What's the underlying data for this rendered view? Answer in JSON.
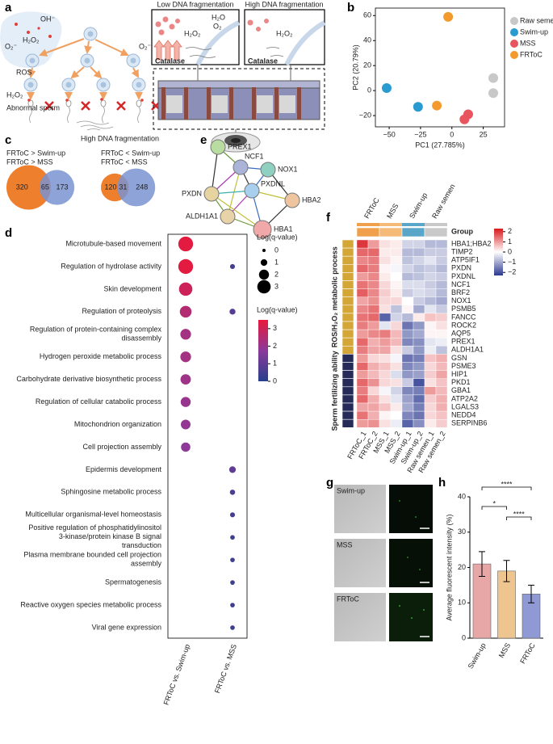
{
  "panel_labels": [
    "a",
    "b",
    "c",
    "d",
    "e",
    "f",
    "g",
    "h"
  ],
  "panel_a": {
    "ros_labels": [
      "OH⁻",
      "O₂⁻",
      "H₂O₂",
      "O₂⁻",
      "ROS",
      "H₂O₂"
    ],
    "abnormal": "Abnormal sperm",
    "high_frag": "High DNA fragmentation",
    "low_box": {
      "title": "Low DNA fragmentation",
      "h2o": "H₂O",
      "o2": "O₂",
      "h2o2": "H₂O₂",
      "catalase": "Catalase"
    },
    "high_box": {
      "title": "High DNA fragmentation",
      "h2o2": "H₂O₂",
      "catalase": "Catalase"
    }
  },
  "panel_c": {
    "venns": [
      {
        "left_label": "FRToC > Swim-up",
        "right_label": "FRToC > MSS",
        "left": 320,
        "both": 65,
        "right": 173,
        "left_color": "#ee7f2d",
        "right_color": "#7a93d0"
      },
      {
        "left_label": "FRToC < Swim-up",
        "right_label": "FRToC < MSS",
        "left": 120,
        "both": 31,
        "right": 248,
        "left_color": "#ee7f2d",
        "right_color": "#7a93d0"
      }
    ]
  },
  "panel_e": {
    "nodes": [
      {
        "label": "PREX1",
        "color": "#b9dca0"
      },
      {
        "label": "NCF1",
        "color": "#a9b4d8"
      },
      {
        "label": "NOX1",
        "color": "#8fd0c0"
      },
      {
        "label": "PXDN",
        "color": "#e6d3a0"
      },
      {
        "label": "PXDNL",
        "color": "#a9cfee"
      },
      {
        "label": "HBA2",
        "color": "#efc5a0"
      },
      {
        "label": "ALDH1A1",
        "color": "#e8d2a8"
      },
      {
        "label": "HBA1",
        "color": "#f0a8a8"
      }
    ]
  },
  "panel_g": {
    "rows": [
      "Swim-up",
      "MSS",
      "FRToC"
    ]
  },
  "chart_data": [
    {
      "type": "scatter",
      "xlabel": "PC1 (27.785%)",
      "ylabel": "PC2 (20.79%)",
      "xlim": [
        -61,
        42
      ],
      "ylim": [
        -29,
        66
      ],
      "xticks": [
        {
          "value": -50,
          "label": "−50"
        },
        {
          "value": -25,
          "label": "−25"
        },
        0,
        25
      ],
      "yticks": [
        {
          "value": -20,
          "label": "−20"
        },
        0,
        20,
        40,
        60
      ],
      "legend": "right",
      "series": [
        {
          "name": "Raw semen",
          "color": "#c8c8c8",
          "x": [
            33,
            33
          ],
          "values": [
            10,
            -2
          ]
        },
        {
          "name": "Swim-up",
          "color": "#2a9bd0",
          "x": [
            -52,
            -27
          ],
          "values": [
            2,
            -13
          ]
        },
        {
          "name": "MSS",
          "color": "#e8555f",
          "x": [
            13,
            10
          ],
          "values": [
            -19,
            -23
          ]
        },
        {
          "name": "FRToC",
          "color": "#f29a2e",
          "x": [
            -3,
            -12
          ],
          "values": [
            59,
            -12
          ]
        }
      ]
    },
    {
      "type": "dot",
      "categories": [
        "Microtubule-based movement",
        "Regulation of hydrolase activity",
        "Skin development",
        "Regulation of proteolysis",
        "Regulation of protein-containing complex disassembly",
        "Hydrogen peroxide metabolic process",
        "Carbohydrate derivative biosynthetic process",
        "Regulation of cellular catabolic process",
        "Mitochondrion organization",
        "Cell projection assembly",
        "Epidermis development",
        "Sphingosine metabolic process",
        "Multicellular organismal-level homeostasis",
        "Positive regulation of phosphatidylinositol 3-kinase/protein kinase B signal transduction",
        "Plasma membrane bounded cell projection assembly",
        "Spermatogenesis",
        "Reactive oxygen species metabolic process",
        "Viral gene expression"
      ],
      "category_colors": [
        "#222",
        "#e02020",
        "#222",
        "#e02020",
        "#222",
        "#e02020",
        "#222",
        "#222",
        "#222",
        "#222",
        "#222",
        "#222",
        "#222",
        "#222",
        "#222",
        "#222",
        "#e02020",
        "#222"
      ],
      "series": [
        {
          "name": "FRToC vs. Swim-up",
          "values": [
            3.4,
            3.4,
            3.0,
            2.5,
            2.2,
            2.2,
            2.1,
            2.0,
            1.9,
            1.8,
            null,
            null,
            null,
            null,
            null,
            null,
            null,
            null
          ]
        },
        {
          "name": "FRToC vs. MSS",
          "values": [
            null,
            0.5,
            null,
            0.8,
            null,
            null,
            null,
            null,
            null,
            null,
            1.0,
            0.6,
            0.5,
            0.4,
            0.4,
            0.4,
            0.4,
            0.4
          ]
        }
      ],
      "size_legend": {
        "title": "Log(q-value)",
        "values": [
          0,
          1,
          2,
          3
        ]
      },
      "color_legend": {
        "title": "Log(q-value)",
        "ticks": [
          0,
          1,
          2,
          3
        ]
      },
      "clim": [
        0,
        3.5
      ],
      "colorscale": [
        "#27408b",
        "#8b3a9a",
        "#e8193c"
      ]
    },
    {
      "type": "heatmap",
      "group_label": "Group",
      "column_groups": [
        {
          "name": "FRToC",
          "color": "#f0a04b",
          "columns": [
            "FRToC_1",
            "FRToC_2"
          ]
        },
        {
          "name": "MSS",
          "color": "#f5b978",
          "columns": [
            "MSS_1",
            "MSS_2"
          ]
        },
        {
          "name": "Swim-up",
          "color": "#5aa6c8",
          "columns": [
            "Swim-up_1",
            "Swim-up_2"
          ]
        },
        {
          "name": "Raw semen",
          "color": "#c9c9c9",
          "columns": [
            "Raw semen_1",
            "Raw semen_2"
          ]
        }
      ],
      "row_blocks": [
        {
          "name": "ROS/H₂O₂ metabolic process",
          "color": "#d4a537",
          "rows": [
            "HBA1;HBA2",
            "TIMP2",
            "ATP5IF1",
            "PXDN",
            "PXDNL",
            "NCF1",
            "BRF2",
            "NOX1",
            "PSMB5",
            "FANCC",
            "ROCK2",
            "AQP5",
            "PREX1",
            "ALDH1A1"
          ],
          "values": [
            [
              2.0,
              1.0,
              0.3,
              0.2,
              -0.5,
              -0.5,
              -0.8,
              -0.8
            ],
            [
              1.5,
              1.5,
              0.2,
              0.2,
              -0.8,
              -0.8,
              -0.6,
              -0.6
            ],
            [
              1.2,
              1.3,
              0.3,
              0.1,
              -0.7,
              -0.5,
              -0.3,
              -0.6
            ],
            [
              1.5,
              1.3,
              0.1,
              -0.1,
              -0.5,
              -0.7,
              -0.6,
              -0.8
            ],
            [
              1.0,
              1.2,
              0.2,
              0.0,
              -0.8,
              -0.7,
              -0.5,
              -0.6
            ],
            [
              1.4,
              1.2,
              0.4,
              0.1,
              -0.4,
              -0.4,
              -0.6,
              -0.8
            ],
            [
              1.6,
              1.2,
              0.5,
              0.2,
              -0.6,
              -0.4,
              -0.5,
              -0.8
            ],
            [
              0.9,
              1.1,
              0.4,
              0.4,
              0.0,
              -0.6,
              -0.8,
              -1.0
            ],
            [
              1.2,
              1.4,
              0.3,
              -0.7,
              0.1,
              -1.0,
              -0.3,
              -0.6
            ],
            [
              1.4,
              1.5,
              -1.8,
              -0.5,
              -0.8,
              0.2,
              0.6,
              0.5
            ],
            [
              1.3,
              1.0,
              -0.3,
              0.4,
              -1.6,
              -1.2,
              0.1,
              0.3
            ],
            [
              1.0,
              1.2,
              1.3,
              0.7,
              -1.2,
              -1.0,
              0.1,
              0.1
            ],
            [
              1.5,
              0.8,
              1.0,
              0.7,
              -1.4,
              -1.3,
              -0.3,
              -0.2
            ],
            [
              1.3,
              0.9,
              0.9,
              0.3,
              -0.6,
              -1.2,
              -0.2,
              -0.7
            ]
          ]
        },
        {
          "name": "Sperm fertilizing ability",
          "color": "#252a59",
          "rows": [
            "GSN",
            "PSME3",
            "HIP1",
            "PKD1",
            "GBA1",
            "ATP2A2",
            "LGALS3",
            "NEDD4",
            "SERPINB6"
          ],
          "values": [
            [
              1.0,
              0.4,
              0.3,
              -0.1,
              -1.6,
              -1.5,
              0.6,
              0.8
            ],
            [
              1.5,
              0.8,
              0.6,
              0.3,
              -1.4,
              -1.2,
              0.4,
              0.7
            ],
            [
              1.0,
              0.7,
              0.4,
              -0.4,
              -1.2,
              -1.1,
              0.5,
              0.9
            ],
            [
              1.5,
              1.1,
              0.4,
              0.3,
              -0.6,
              -2.0,
              0.3,
              0.6
            ],
            [
              1.3,
              0.4,
              -0.1,
              -0.5,
              -1.4,
              -1.5,
              1.0,
              0.7
            ],
            [
              1.5,
              0.8,
              0.3,
              -0.3,
              -1.1,
              -1.7,
              0.5,
              0.8
            ],
            [
              0.9,
              0.9,
              0.6,
              0.2,
              -1.0,
              -1.5,
              0.4,
              0.8
            ],
            [
              1.4,
              0.8,
              0.1,
              0.0,
              -1.4,
              -1.6,
              0.4,
              0.6
            ],
            [
              1.0,
              1.1,
              0.3,
              -0.2,
              -1.8,
              -1.3,
              0.2,
              0.5
            ]
          ]
        }
      ],
      "clim": [
        -2.3,
        2.3
      ],
      "colorscale": [
        "#2b3990",
        "#ffffff",
        "#d7191c"
      ],
      "colorbar_ticks": [
        2,
        1,
        0,
        {
          "value": -1,
          "label": "−1"
        },
        {
          "value": -2,
          "label": "−2"
        }
      ]
    },
    {
      "type": "bar",
      "ylabel": "Average fluorescent intensity (%)",
      "categories": [
        "Swim-up",
        "MSS",
        "FRToC"
      ],
      "values": [
        21,
        19,
        12.5
      ],
      "errors": [
        3.5,
        3,
        2.5
      ],
      "colors": [
        "#e8a7a7",
        "#efc58f",
        "#8f9ad4"
      ],
      "ylim": [
        0,
        40
      ],
      "yticks": [
        0,
        10,
        20,
        30,
        40
      ],
      "significance": [
        "****",
        "*",
        "****"
      ]
    }
  ]
}
